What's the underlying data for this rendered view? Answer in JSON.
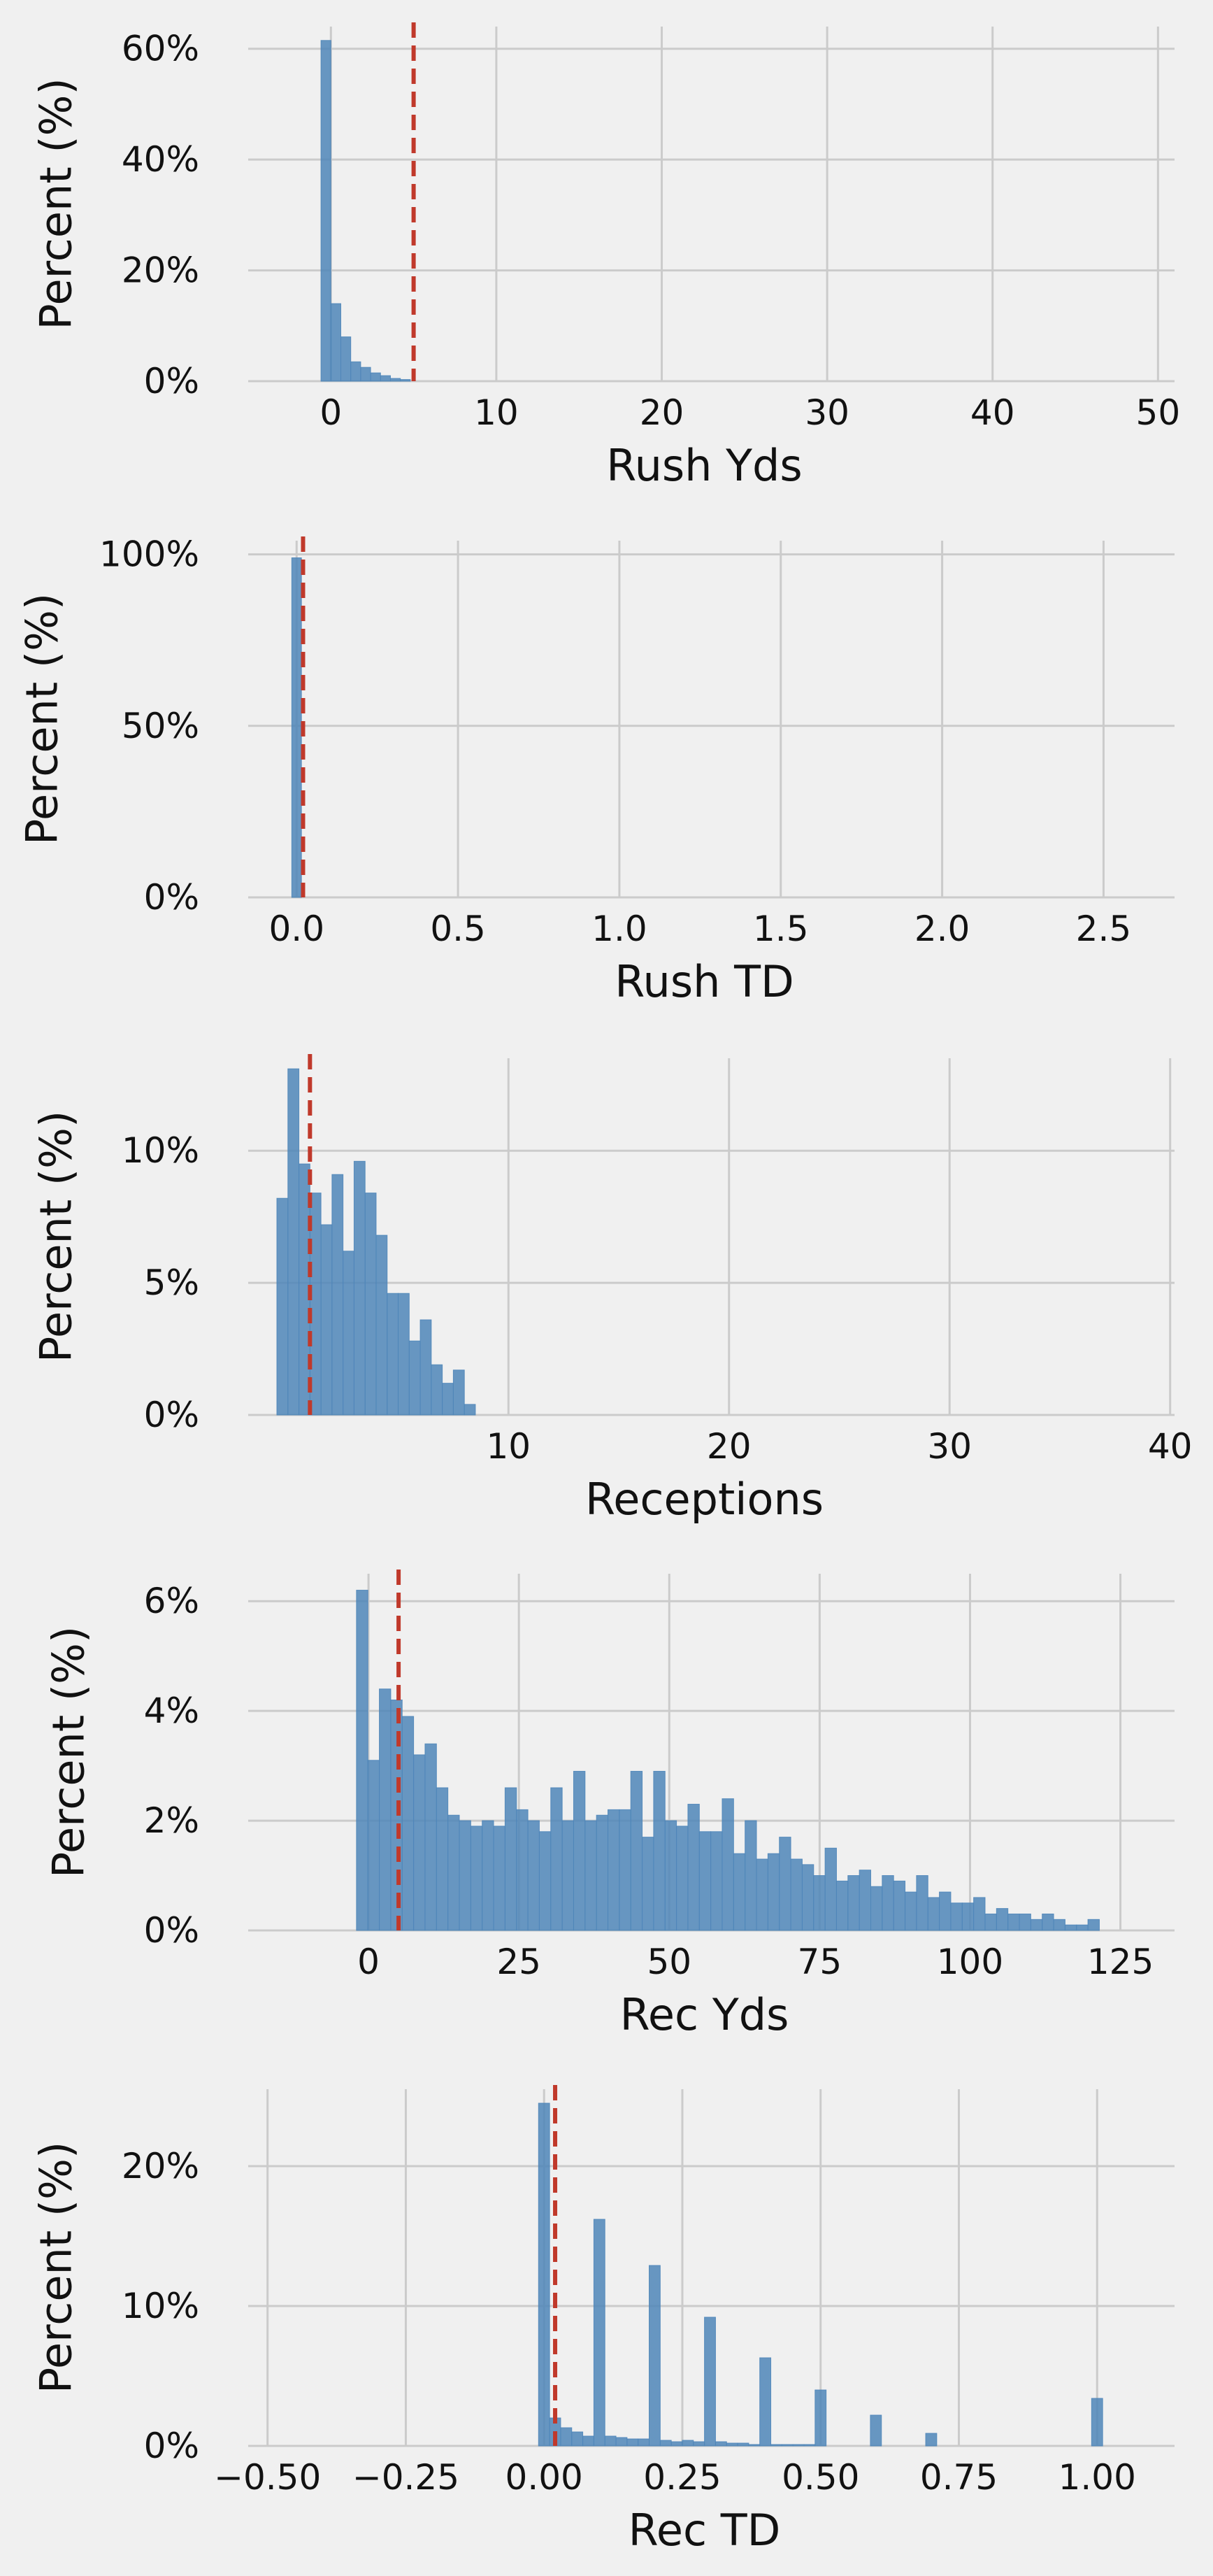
{
  "colors": {
    "bar": "#4f86b9",
    "median_line": "#c0392b",
    "grid": "#cbcbcb",
    "background": "#f0f0f0"
  },
  "chart_data": [
    {
      "type": "bar",
      "xlabel": "Rush Yds",
      "ylabel": "Percent (%)",
      "xlim": [
        -5,
        51
      ],
      "ylim": [
        0,
        64
      ],
      "x_ticks": [
        0,
        10,
        20,
        30,
        40,
        50
      ],
      "x_tick_labels": [
        "0",
        "10",
        "20",
        "30",
        "40",
        "50"
      ],
      "y_ticks": [
        0,
        20,
        40,
        60
      ],
      "y_tick_labels": [
        "0%",
        "20%",
        "40%",
        "60%"
      ],
      "grid": true,
      "bin_width": 0.6,
      "bin_start": -0.6,
      "values": [
        61.5,
        14.0,
        8.0,
        3.5,
        2.5,
        1.5,
        1.0,
        0.5,
        0.3
      ],
      "median_line": 5
    },
    {
      "type": "bar",
      "xlabel": "Rush TD",
      "ylabel": "Percent (%)",
      "xlim": [
        -0.15,
        2.72
      ],
      "ylim": [
        0,
        104
      ],
      "x_ticks": [
        0.0,
        0.5,
        1.0,
        1.5,
        2.0,
        2.5
      ],
      "x_tick_labels": [
        "0.0",
        "0.5",
        "1.0",
        "1.5",
        "2.0",
        "2.5"
      ],
      "y_ticks": [
        0,
        50,
        100
      ],
      "y_tick_labels": [
        "0%",
        "50%",
        "100%"
      ],
      "grid": true,
      "bin_width": 0.03,
      "bin_start": -0.015,
      "values": [
        99.0
      ],
      "median_line": 0.02
    },
    {
      "type": "bar",
      "xlabel": "Receptions",
      "ylabel": "Percent (%)",
      "xlim": [
        -1.8,
        40.2
      ],
      "ylim": [
        0,
        13.5
      ],
      "x_ticks": [
        10,
        20,
        30,
        40
      ],
      "x_tick_labels": [
        "10",
        "20",
        "30",
        "40"
      ],
      "y_ticks": [
        0,
        5,
        10
      ],
      "y_tick_labels": [
        "0%",
        "5%",
        "10%"
      ],
      "grid": true,
      "bin_width": 0.5,
      "bin_start": -0.5,
      "values": [
        8.2,
        13.1,
        9.5,
        8.4,
        7.2,
        9.1,
        6.2,
        9.6,
        8.4,
        6.8,
        4.6,
        4.6,
        2.8,
        3.6,
        1.9,
        1.2,
        1.7,
        0.4
      ],
      "median_line": 1
    },
    {
      "type": "bar",
      "xlabel": "Rec Yds",
      "ylabel": "Percent (%)",
      "xlim": [
        -20,
        134
      ],
      "ylim": [
        0,
        6.5
      ],
      "x_ticks": [
        0,
        25,
        50,
        75,
        100,
        125
      ],
      "x_tick_labels": [
        "0",
        "25",
        "50",
        "75",
        "100",
        "125"
      ],
      "y_ticks": [
        0,
        2,
        4,
        6
      ],
      "y_tick_labels": [
        "0%",
        "2%",
        "4%",
        "6%"
      ],
      "grid": true,
      "bin_width": 1.9,
      "bin_start": -2,
      "values": [
        6.2,
        3.1,
        4.4,
        4.2,
        3.9,
        3.2,
        3.4,
        2.6,
        2.1,
        2.0,
        1.9,
        2.0,
        1.9,
        2.6,
        2.2,
        2.0,
        1.8,
        2.6,
        2.0,
        2.9,
        2.0,
        2.1,
        2.2,
        2.2,
        2.9,
        1.7,
        2.9,
        2.0,
        1.9,
        2.3,
        1.8,
        1.8,
        2.4,
        1.4,
        2.0,
        1.3,
        1.4,
        1.7,
        1.3,
        1.2,
        1.0,
        1.5,
        0.9,
        1.0,
        1.1,
        0.8,
        1.0,
        0.9,
        0.7,
        1.0,
        0.6,
        0.7,
        0.5,
        0.5,
        0.6,
        0.3,
        0.4,
        0.3,
        0.3,
        0.2,
        0.3,
        0.2,
        0.1,
        0.1,
        0.2
      ],
      "median_line": 5
    },
    {
      "type": "bar",
      "xlabel": "Rec TD",
      "ylabel": "Percent (%)",
      "xlim": [
        -0.535,
        1.14
      ],
      "ylim": [
        0,
        25.5
      ],
      "x_ticks": [
        -0.5,
        -0.25,
        0.0,
        0.25,
        0.5,
        0.75,
        1.0
      ],
      "x_tick_labels": [
        "−0.50",
        "−0.25",
        "0.00",
        "0.25",
        "0.50",
        "0.75",
        "1.00"
      ],
      "y_ticks": [
        0,
        10,
        20
      ],
      "y_tick_labels": [
        "0%",
        "10%",
        "20%"
      ],
      "grid": true,
      "bin_width": 0.02,
      "bin_start": -0.01,
      "values": [
        24.5,
        2.0,
        1.3,
        1.0,
        0.7,
        16.2,
        0.7,
        0.6,
        0.5,
        0.5,
        12.9,
        0.4,
        0.3,
        0.4,
        0.3,
        9.2,
        0.3,
        0.2,
        0.2,
        0.1,
        6.3,
        0.1,
        0.1,
        0.1,
        0.1,
        4.0,
        0,
        0,
        0,
        0,
        2.2,
        0,
        0,
        0,
        0,
        0.9,
        0,
        0,
        0,
        0,
        0,
        0,
        0,
        0,
        0,
        0,
        0,
        0,
        0,
        0,
        3.4
      ],
      "median_line": 0.02
    }
  ]
}
